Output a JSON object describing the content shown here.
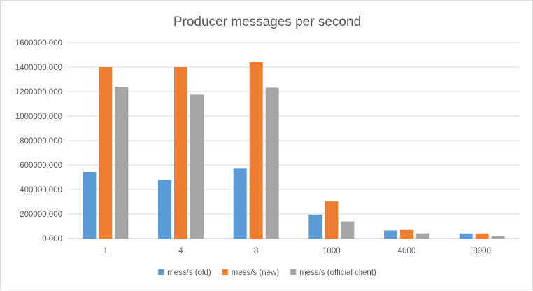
{
  "chart_data": {
    "type": "bar",
    "title": "Producer messages per second",
    "xlabel": "",
    "ylabel": "",
    "categories": [
      "1",
      "4",
      "8",
      "1000",
      "4000",
      "8000"
    ],
    "ylim": [
      0,
      1600000
    ],
    "yticks": [
      0,
      200000,
      400000,
      600000,
      800000,
      1000000,
      1200000,
      1400000,
      1600000
    ],
    "ytick_labels": [
      "0,000",
      "200000,000",
      "400000,000",
      "600000,000",
      "800000,000",
      "1000000,000",
      "1200000,000",
      "1400000,000",
      "1600000,000"
    ],
    "grid": true,
    "legend_position": "bottom",
    "series": [
      {
        "name": "mess/s (old)",
        "color": "#5b9bd5",
        "values": [
          543000,
          477000,
          575000,
          195000,
          66000,
          41000
        ]
      },
      {
        "name": "mess/s (new)",
        "color": "#ed7d31",
        "values": [
          1400000,
          1400000,
          1440000,
          302000,
          70000,
          41000
        ]
      },
      {
        "name": "mess/s (official client)",
        "color": "#a5a5a5",
        "values": [
          1240000,
          1175000,
          1232000,
          140000,
          42000,
          20000
        ]
      }
    ]
  }
}
